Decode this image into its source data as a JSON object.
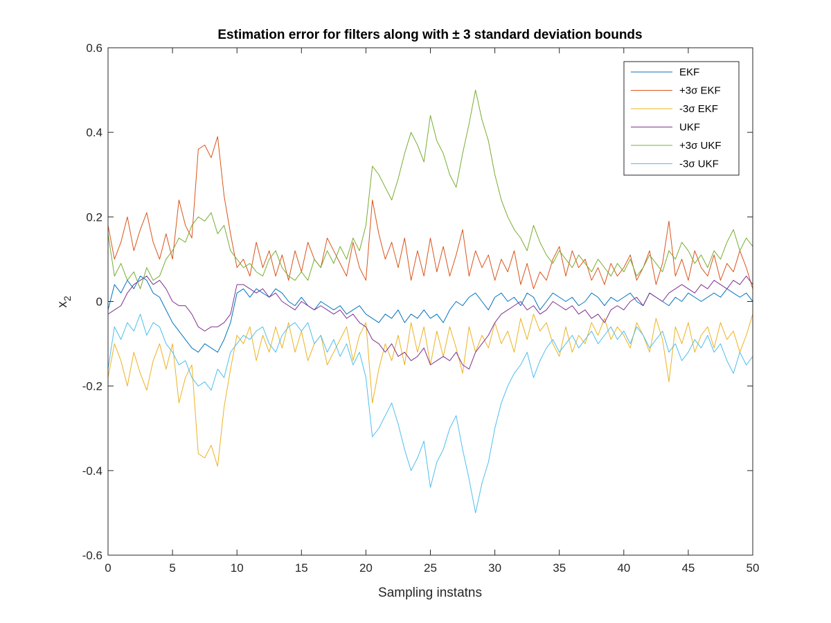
{
  "chart_data": {
    "type": "line",
    "title": "Estimation error for filters along with ± 3 standard deviation bounds",
    "xlabel": "Sampling instatns",
    "ylabel": "x",
    "ylabel_subscript": "2",
    "xlim": [
      0,
      50
    ],
    "ylim": [
      -0.6,
      0.6
    ],
    "xticks": [
      0,
      5,
      10,
      15,
      20,
      25,
      30,
      35,
      40,
      45,
      50
    ],
    "yticks": [
      -0.6,
      -0.4,
      -0.2,
      0,
      0.2,
      0.4,
      0.6
    ],
    "ytick_labels": [
      "-0.6",
      "-0.4",
      "-0.2",
      "0",
      "0.2",
      "0.4",
      "0.6"
    ],
    "grid": false,
    "legend_position": "top-right",
    "x": [
      0,
      0.5,
      1,
      1.5,
      2,
      2.5,
      3,
      3.5,
      4,
      4.5,
      5,
      5.5,
      6,
      6.5,
      7,
      7.5,
      8,
      8.5,
      9,
      9.5,
      10,
      10.5,
      11,
      11.5,
      12,
      12.5,
      13,
      13.5,
      14,
      14.5,
      15,
      15.5,
      16,
      16.5,
      17,
      17.5,
      18,
      18.5,
      19,
      19.5,
      20,
      20.5,
      21,
      21.5,
      22,
      22.5,
      23,
      23.5,
      24,
      24.5,
      25,
      25.5,
      26,
      26.5,
      27,
      27.5,
      28,
      28.5,
      29,
      29.5,
      30,
      30.5,
      31,
      31.5,
      32,
      32.5,
      33,
      33.5,
      34,
      34.5,
      35,
      35.5,
      36,
      36.5,
      37,
      37.5,
      38,
      38.5,
      39,
      39.5,
      40,
      40.5,
      41,
      41.5,
      42,
      42.5,
      43,
      43.5,
      44,
      44.5,
      45,
      45.5,
      46,
      46.5,
      47,
      47.5,
      48,
      48.5,
      49,
      49.5,
      50
    ],
    "series": [
      {
        "name": "EKF",
        "color": "#0072BD",
        "values": [
          -0.02,
          0.04,
          0.02,
          0.05,
          0.03,
          0.06,
          0.05,
          0.02,
          0.01,
          -0.02,
          -0.05,
          -0.07,
          -0.09,
          -0.11,
          -0.12,
          -0.1,
          -0.11,
          -0.12,
          -0.09,
          -0.05,
          0.02,
          0.03,
          0.01,
          0.03,
          0.02,
          0.01,
          0.03,
          0.02,
          0.0,
          -0.01,
          0.01,
          -0.01,
          -0.02,
          0.0,
          -0.01,
          -0.02,
          -0.01,
          -0.03,
          -0.02,
          -0.01,
          -0.03,
          -0.04,
          -0.05,
          -0.03,
          -0.04,
          -0.02,
          -0.05,
          -0.03,
          -0.04,
          -0.02,
          -0.04,
          -0.03,
          -0.05,
          -0.02,
          0.0,
          -0.01,
          0.01,
          0.02,
          0.0,
          -0.02,
          0.01,
          0.02,
          0.0,
          0.01,
          -0.01,
          0.02,
          0.01,
          -0.02,
          0.0,
          0.02,
          0.01,
          0.0,
          0.01,
          -0.01,
          0.0,
          0.02,
          0.01,
          -0.01,
          0.01,
          0.0,
          0.01,
          0.02,
          0.0,
          -0.01,
          0.02,
          0.01,
          0.0,
          -0.01,
          0.01,
          0.0,
          0.02,
          0.01,
          0.0,
          0.01,
          0.02,
          0.01,
          0.03,
          0.02,
          0.01,
          0.02,
          0.0
        ]
      },
      {
        "name": "+3σ EKF",
        "color": "#D95319",
        "values": [
          0.18,
          0.1,
          0.14,
          0.2,
          0.12,
          0.17,
          0.21,
          0.14,
          0.1,
          0.16,
          0.1,
          0.24,
          0.18,
          0.15,
          0.36,
          0.37,
          0.34,
          0.39,
          0.25,
          0.16,
          0.08,
          0.1,
          0.06,
          0.14,
          0.08,
          0.12,
          0.06,
          0.11,
          0.05,
          0.12,
          0.07,
          0.14,
          0.1,
          0.08,
          0.15,
          0.12,
          0.09,
          0.06,
          0.14,
          0.08,
          0.05,
          0.24,
          0.16,
          0.1,
          0.14,
          0.08,
          0.15,
          0.05,
          0.12,
          0.06,
          0.15,
          0.07,
          0.13,
          0.06,
          0.11,
          0.17,
          0.06,
          0.12,
          0.08,
          0.11,
          0.05,
          0.1,
          0.07,
          0.12,
          0.04,
          0.09,
          0.03,
          0.07,
          0.05,
          0.1,
          0.13,
          0.06,
          0.12,
          0.08,
          0.1,
          0.05,
          0.08,
          0.04,
          0.09,
          0.06,
          0.08,
          0.11,
          0.05,
          0.08,
          0.12,
          0.04,
          0.09,
          0.19,
          0.06,
          0.1,
          0.05,
          0.12,
          0.08,
          0.06,
          0.11,
          0.05,
          0.09,
          0.07,
          0.12,
          0.08,
          0.03
        ]
      },
      {
        "name": "-3σ EKF",
        "color": "#EDB120",
        "values": [
          -0.18,
          -0.1,
          -0.14,
          -0.2,
          -0.12,
          -0.17,
          -0.21,
          -0.14,
          -0.1,
          -0.16,
          -0.1,
          -0.24,
          -0.18,
          -0.15,
          -0.36,
          -0.37,
          -0.34,
          -0.39,
          -0.25,
          -0.16,
          -0.08,
          -0.1,
          -0.06,
          -0.14,
          -0.08,
          -0.12,
          -0.06,
          -0.11,
          -0.05,
          -0.12,
          -0.07,
          -0.14,
          -0.1,
          -0.08,
          -0.15,
          -0.12,
          -0.09,
          -0.06,
          -0.14,
          -0.08,
          -0.05,
          -0.24,
          -0.16,
          -0.1,
          -0.14,
          -0.08,
          -0.15,
          -0.05,
          -0.12,
          -0.06,
          -0.15,
          -0.07,
          -0.13,
          -0.06,
          -0.11,
          -0.17,
          -0.06,
          -0.12,
          -0.08,
          -0.11,
          -0.05,
          -0.1,
          -0.07,
          -0.12,
          -0.04,
          -0.09,
          -0.03,
          -0.07,
          -0.05,
          -0.1,
          -0.13,
          -0.06,
          -0.12,
          -0.08,
          -0.1,
          -0.05,
          -0.08,
          -0.04,
          -0.09,
          -0.06,
          -0.08,
          -0.11,
          -0.05,
          -0.08,
          -0.12,
          -0.04,
          -0.09,
          -0.19,
          -0.06,
          -0.1,
          -0.05,
          -0.12,
          -0.08,
          -0.06,
          -0.11,
          -0.05,
          -0.09,
          -0.07,
          -0.12,
          -0.08,
          -0.03
        ]
      },
      {
        "name": "UKF",
        "color": "#7E2F8E",
        "values": [
          -0.03,
          -0.02,
          -0.01,
          0.02,
          0.04,
          0.05,
          0.06,
          0.04,
          0.05,
          0.03,
          0.0,
          -0.01,
          -0.01,
          -0.03,
          -0.06,
          -0.07,
          -0.06,
          -0.06,
          -0.05,
          -0.03,
          0.04,
          0.04,
          0.03,
          0.02,
          0.03,
          0.01,
          0.02,
          0.0,
          -0.01,
          -0.02,
          0.0,
          -0.01,
          -0.02,
          -0.01,
          -0.02,
          -0.03,
          -0.02,
          -0.04,
          -0.03,
          -0.05,
          -0.06,
          -0.09,
          -0.1,
          -0.12,
          -0.1,
          -0.13,
          -0.12,
          -0.14,
          -0.13,
          -0.11,
          -0.15,
          -0.14,
          -0.13,
          -0.14,
          -0.12,
          -0.15,
          -0.16,
          -0.12,
          -0.1,
          -0.08,
          -0.05,
          -0.03,
          -0.02,
          -0.01,
          0.0,
          -0.02,
          -0.01,
          -0.03,
          -0.02,
          0.0,
          -0.01,
          -0.02,
          -0.01,
          -0.03,
          -0.02,
          -0.04,
          -0.03,
          -0.05,
          -0.02,
          -0.01,
          -0.02,
          0.0,
          0.01,
          -0.01,
          0.02,
          0.01,
          0.0,
          0.02,
          0.03,
          0.04,
          0.03,
          0.02,
          0.04,
          0.03,
          0.05,
          0.04,
          0.03,
          0.05,
          0.04,
          0.06,
          0.04
        ]
      },
      {
        "name": "+3σ UKF",
        "color": "#77AC30",
        "values": [
          0.16,
          0.06,
          0.09,
          0.05,
          0.07,
          0.03,
          0.08,
          0.05,
          0.06,
          0.1,
          0.12,
          0.15,
          0.14,
          0.18,
          0.2,
          0.19,
          0.21,
          0.16,
          0.18,
          0.12,
          0.1,
          0.08,
          0.09,
          0.07,
          0.06,
          0.1,
          0.12,
          0.08,
          0.06,
          0.05,
          0.07,
          0.05,
          0.1,
          0.08,
          0.12,
          0.09,
          0.13,
          0.1,
          0.15,
          0.12,
          0.18,
          0.32,
          0.3,
          0.27,
          0.24,
          0.29,
          0.35,
          0.4,
          0.37,
          0.33,
          0.44,
          0.38,
          0.35,
          0.3,
          0.27,
          0.35,
          0.42,
          0.5,
          0.43,
          0.38,
          0.3,
          0.24,
          0.2,
          0.17,
          0.15,
          0.12,
          0.18,
          0.14,
          0.11,
          0.09,
          0.12,
          0.1,
          0.08,
          0.11,
          0.09,
          0.07,
          0.1,
          0.08,
          0.06,
          0.09,
          0.07,
          0.1,
          0.06,
          0.08,
          0.11,
          0.09,
          0.07,
          0.12,
          0.1,
          0.14,
          0.12,
          0.09,
          0.11,
          0.08,
          0.12,
          0.1,
          0.14,
          0.17,
          0.12,
          0.15,
          0.13
        ]
      },
      {
        "name": "-3σ UKF",
        "color": "#4DBEEE",
        "values": [
          -0.16,
          -0.06,
          -0.09,
          -0.05,
          -0.07,
          -0.03,
          -0.08,
          -0.05,
          -0.06,
          -0.1,
          -0.12,
          -0.15,
          -0.14,
          -0.18,
          -0.2,
          -0.19,
          -0.21,
          -0.16,
          -0.18,
          -0.12,
          -0.1,
          -0.08,
          -0.09,
          -0.07,
          -0.06,
          -0.1,
          -0.12,
          -0.08,
          -0.06,
          -0.05,
          -0.07,
          -0.05,
          -0.1,
          -0.08,
          -0.12,
          -0.09,
          -0.13,
          -0.1,
          -0.15,
          -0.12,
          -0.18,
          -0.32,
          -0.3,
          -0.27,
          -0.24,
          -0.29,
          -0.35,
          -0.4,
          -0.37,
          -0.33,
          -0.44,
          -0.38,
          -0.35,
          -0.3,
          -0.27,
          -0.35,
          -0.42,
          -0.5,
          -0.43,
          -0.38,
          -0.3,
          -0.24,
          -0.2,
          -0.17,
          -0.15,
          -0.12,
          -0.18,
          -0.14,
          -0.11,
          -0.09,
          -0.12,
          -0.1,
          -0.08,
          -0.11,
          -0.09,
          -0.07,
          -0.1,
          -0.08,
          -0.06,
          -0.09,
          -0.07,
          -0.1,
          -0.06,
          -0.08,
          -0.11,
          -0.09,
          -0.07,
          -0.12,
          -0.1,
          -0.14,
          -0.12,
          -0.09,
          -0.11,
          -0.08,
          -0.12,
          -0.1,
          -0.14,
          -0.17,
          -0.12,
          -0.15,
          -0.13
        ]
      }
    ]
  }
}
